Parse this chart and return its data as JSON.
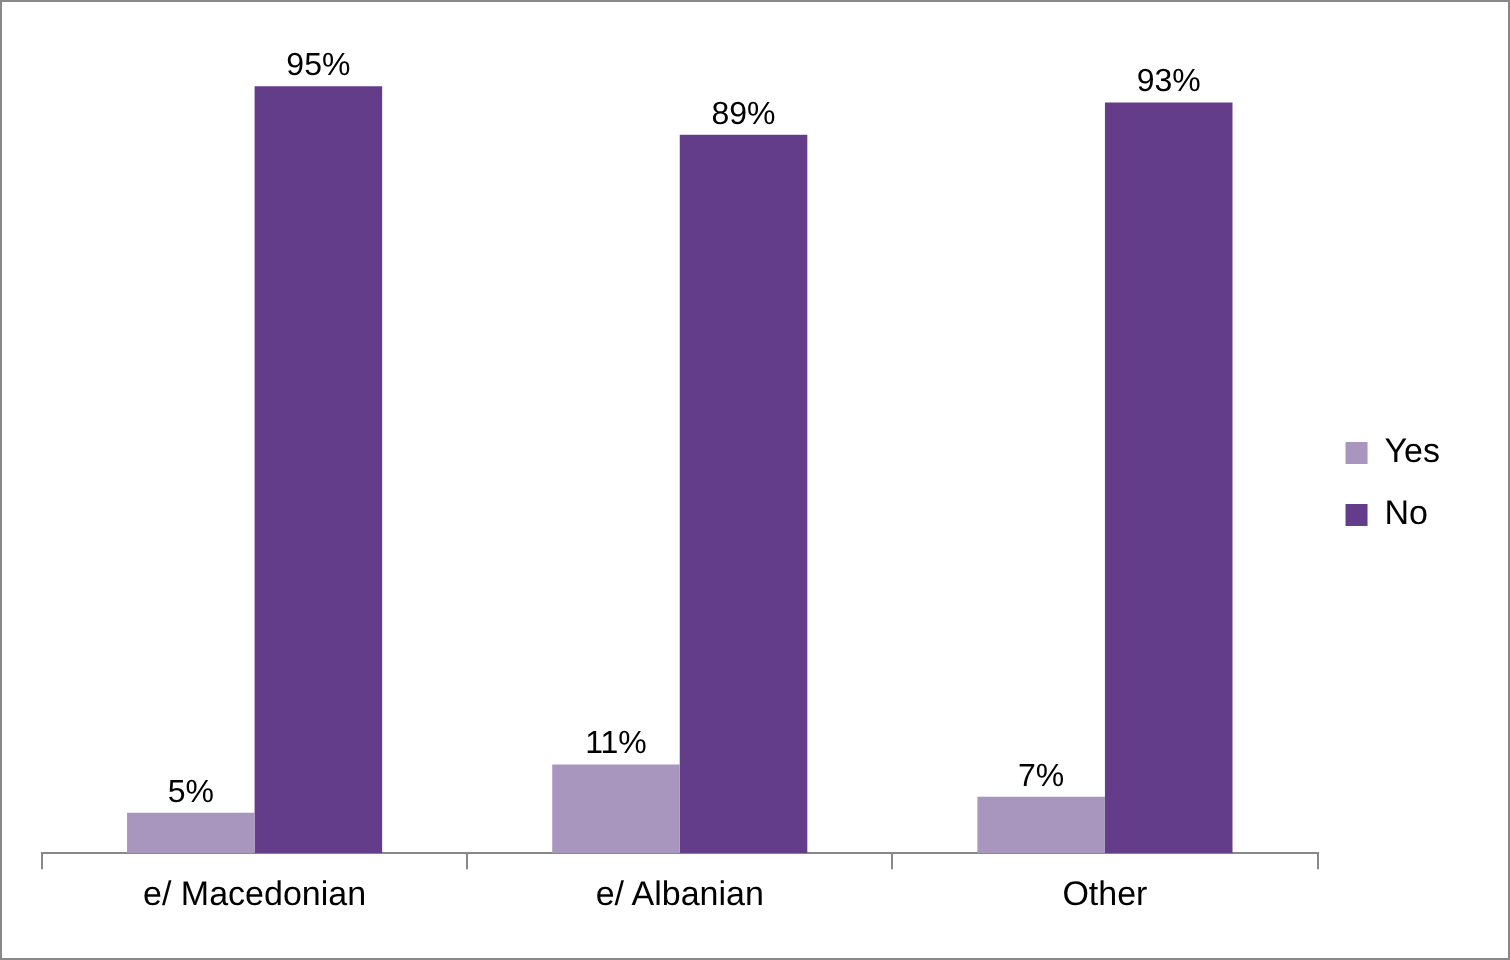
{
  "chart_data": {
    "type": "bar",
    "categories": [
      "e/ Macedonian",
      "e/ Albanian",
      "Other"
    ],
    "series": [
      {
        "name": "Yes",
        "color": "#a996be",
        "values": [
          5,
          11,
          7
        ],
        "value_labels": [
          "5%",
          "11%",
          "7%"
        ]
      },
      {
        "name": "No",
        "color": "#643d8a",
        "values": [
          95,
          89,
          93
        ],
        "value_labels": [
          "95%",
          "89%",
          "93%"
        ]
      }
    ],
    "legend": "right",
    "grid": false
  }
}
